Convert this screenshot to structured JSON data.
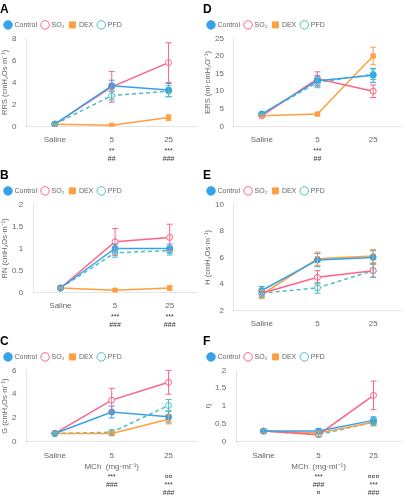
{
  "chart_data": [
    {
      "type": "line",
      "title": "A",
      "categories": [
        "Saline",
        "5",
        "25"
      ],
      "ylabel": "RRS (cmH₂Os·m⁻¹)",
      "ylim": [
        0,
        8
      ],
      "yticks": [
        0,
        2,
        4,
        6,
        8
      ],
      "grid": false,
      "legend": "upper left",
      "series": [
        {
          "name": "Control",
          "values": [
            0.2,
            3.7,
            3.3
          ],
          "errors": [
            0.08,
            0.5,
            0.6
          ],
          "marker": "circle",
          "line_style": "solid"
        },
        {
          "name": "SO₂",
          "values": [
            0.2,
            3.6,
            5.8
          ],
          "errors": [
            0.08,
            1.4,
            1.8
          ],
          "marker": "open-circle",
          "line_style": "solid"
        },
        {
          "name": "DEX",
          "values": [
            0.2,
            0.1,
            0.8
          ],
          "errors": [
            0.05,
            0.05,
            0.25
          ],
          "marker": "square",
          "line_style": "solid"
        },
        {
          "name": "PFD",
          "values": [
            0.2,
            2.8,
            3.2
          ],
          "errors": [
            0.08,
            0.4,
            0.5
          ],
          "marker": "open-circle",
          "line_style": "dashed"
        }
      ],
      "annotations": [
        {
          "x": "5",
          "text": "**\n##"
        },
        {
          "x": "25",
          "text": "***\n###"
        }
      ]
    },
    {
      "type": "line",
      "title": "D",
      "categories": [
        "Saline",
        "5",
        "25"
      ],
      "ylabel": "ERS (ml·cmH₂O⁻¹)",
      "ylim": [
        0,
        25
      ],
      "yticks": [
        0,
        5,
        10,
        15,
        20,
        25
      ],
      "grid": false,
      "legend": "upper left",
      "series": [
        {
          "name": "Control",
          "values": [
            3.5,
            13.0,
            14.5
          ],
          "errors": [
            0.3,
            1.5,
            2.0
          ],
          "marker": "circle",
          "line_style": "solid"
        },
        {
          "name": "SO₂",
          "values": [
            3.0,
            13.5,
            10.0
          ],
          "errors": [
            0.3,
            2.0,
            1.8
          ],
          "marker": "open-circle",
          "line_style": "solid"
        },
        {
          "name": "DEX",
          "values": [
            3.0,
            3.5,
            20.0
          ],
          "errors": [
            0.3,
            0.5,
            2.5
          ],
          "marker": "square",
          "line_style": "solid"
        },
        {
          "name": "PFD",
          "values": [
            3.5,
            12.5,
            14.8
          ],
          "errors": [
            0.3,
            1.5,
            1.5
          ],
          "marker": "open-circle",
          "line_style": "dashed"
        }
      ],
      "annotations": [
        {
          "x": "5",
          "text": "***\n##"
        }
      ]
    },
    {
      "type": "line",
      "title": "B",
      "categories": [
        "Saline",
        "5",
        "25"
      ],
      "ylabel": "RN (cmH₂Os·m⁻¹)",
      "ylim": [
        0,
        2.0
      ],
      "yticks": [
        0,
        0.5,
        1,
        1.5,
        2
      ],
      "grid": false,
      "legend": "upper left",
      "series": [
        {
          "name": "Control",
          "values": [
            0.1,
            1.0,
            1.0
          ],
          "errors": [
            0.02,
            0.1,
            0.1
          ],
          "marker": "circle",
          "line_style": "solid"
        },
        {
          "name": "SO₂",
          "values": [
            0.1,
            1.15,
            1.25
          ],
          "errors": [
            0.02,
            0.3,
            0.3
          ],
          "marker": "open-circle",
          "line_style": "solid"
        },
        {
          "name": "DEX",
          "values": [
            0.1,
            0.05,
            0.1
          ],
          "errors": [
            0.02,
            0.02,
            0.05
          ],
          "marker": "square",
          "line_style": "solid"
        },
        {
          "name": "PFD",
          "values": [
            0.1,
            0.9,
            0.95
          ],
          "errors": [
            0.02,
            0.1,
            0.1
          ],
          "marker": "open-circle",
          "line_style": "dashed"
        }
      ],
      "annotations": [
        {
          "x": "5",
          "text": "***\n###"
        },
        {
          "x": "25",
          "text": "***\n###"
        }
      ]
    },
    {
      "type": "line",
      "title": "E",
      "categories": [
        "Saline",
        "5",
        "25"
      ],
      "ylabel": "H (cmH₂Os·m⁻¹)",
      "ylim": [
        2,
        10
      ],
      "yticks": [
        2,
        4,
        6,
        8,
        10
      ],
      "grid": false,
      "legend": "upper left",
      "series": [
        {
          "name": "Control",
          "values": [
            3.5,
            5.8,
            6.0
          ],
          "errors": [
            0.3,
            0.5,
            0.5
          ],
          "marker": "circle",
          "line_style": "solid"
        },
        {
          "name": "SO₂",
          "values": [
            3.3,
            4.5,
            5.0
          ],
          "errors": [
            0.3,
            0.5,
            0.5
          ],
          "marker": "open-circle",
          "line_style": "solid"
        },
        {
          "name": "DEX",
          "values": [
            3.2,
            5.9,
            6.1
          ],
          "errors": [
            0.3,
            0.5,
            0.5
          ],
          "marker": "square",
          "line_style": "solid"
        },
        {
          "name": "PFD",
          "values": [
            3.3,
            3.7,
            5.0
          ],
          "errors": [
            0.3,
            0.4,
            0.5
          ],
          "marker": "open-circle",
          "line_style": "dashed"
        }
      ],
      "annotations": []
    },
    {
      "type": "line",
      "title": "C",
      "categories": [
        "Saline",
        "5",
        "25"
      ],
      "xlabel": "MCh  (mg·ml⁻¹)",
      "ylabel": "G (cmH₂Os·m⁻¹)",
      "ylim": [
        0,
        6
      ],
      "yticks": [
        0,
        2,
        4,
        6
      ],
      "grid": false,
      "legend": "upper left",
      "series": [
        {
          "name": "Control",
          "values": [
            0.7,
            2.5,
            2.1
          ],
          "errors": [
            0.1,
            0.5,
            0.5
          ],
          "marker": "circle",
          "line_style": "solid"
        },
        {
          "name": "SO₂",
          "values": [
            0.7,
            3.5,
            5.0
          ],
          "errors": [
            0.1,
            1.0,
            1.0
          ],
          "marker": "open-circle",
          "line_style": "solid"
        },
        {
          "name": "DEX",
          "values": [
            0.7,
            0.7,
            1.9
          ],
          "errors": [
            0.1,
            0.2,
            0.4
          ],
          "marker": "square",
          "line_style": "solid"
        },
        {
          "name": "PFD",
          "values": [
            0.7,
            0.8,
            3.05
          ],
          "errors": [
            0.1,
            0.2,
            0.5
          ],
          "marker": "open-circle",
          "line_style": "dashed"
        }
      ],
      "annotations": [
        {
          "x": "5",
          "text": "***\n###"
        },
        {
          "x": "25",
          "text": "¤¤\n***\n###"
        }
      ]
    },
    {
      "type": "line",
      "title": "F",
      "categories": [
        "Saline",
        "5",
        "25"
      ],
      "xlabel": "MCh  (mg·ml⁻¹)",
      "ylabel": "η",
      "ylim": [
        0,
        2.0
      ],
      "yticks": [
        0,
        0.5,
        1,
        1.5,
        2
      ],
      "grid": false,
      "legend": "upper left",
      "series": [
        {
          "name": "Control",
          "values": [
            0.3,
            0.3,
            0.6
          ],
          "errors": [
            0.05,
            0.06,
            0.1
          ],
          "marker": "circle",
          "line_style": "solid"
        },
        {
          "name": "SO₂",
          "values": [
            0.3,
            0.2,
            1.3
          ],
          "errors": [
            0.05,
            0.05,
            0.4
          ],
          "marker": "open-circle",
          "line_style": "solid"
        },
        {
          "name": "DEX",
          "values": [
            0.3,
            0.25,
            0.55
          ],
          "errors": [
            0.05,
            0.05,
            0.1
          ],
          "marker": "square",
          "line_style": "solid"
        },
        {
          "name": "PFD",
          "values": [
            0.3,
            0.2,
            0.55
          ],
          "errors": [
            0.05,
            0.05,
            0.1
          ],
          "marker": "open-circle",
          "line_style": "dashed"
        }
      ],
      "annotations": [
        {
          "x": "5",
          "text": "***\n###\n¤"
        },
        {
          "x": "25",
          "text": "¤¤¤\n***\n###"
        }
      ]
    }
  ]
}
